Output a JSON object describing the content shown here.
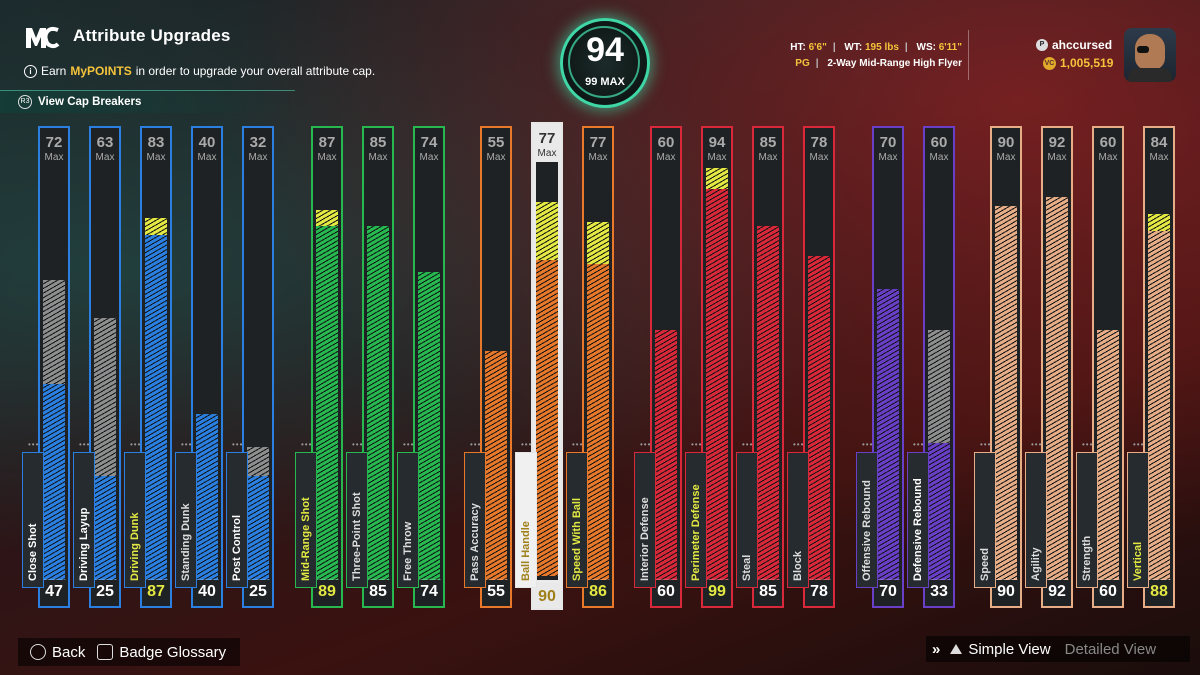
{
  "header": {
    "title": "Attribute Upgrades",
    "earn_prefix": "Earn",
    "earn_highlight": "MyPOINTS",
    "earn_suffix": "in order to upgrade your overall attribute cap.",
    "cap_breakers": "View Cap Breakers"
  },
  "overall": {
    "value": "94",
    "max_label": "99 MAX"
  },
  "player": {
    "ht_label": "HT:",
    "ht": "6'6\"",
    "wt_label": "WT:",
    "wt": "195 lbs",
    "ws_label": "WS:",
    "ws": "6'11\"",
    "position": "PG",
    "archetype": "2-Way Mid-Range High Flyer",
    "username": "ahccursed",
    "vc": "1,005,519"
  },
  "max_label": "Max",
  "colors": {
    "blue": "#2b7fe0",
    "green": "#27b850",
    "orange": "#e8782a",
    "red": "#d8283a",
    "purple": "#6a3fc8",
    "tan": "#e6ad86",
    "gray": "#8e8e8e",
    "yellow": "#e3e842"
  },
  "attributes": [
    {
      "name": "Close Shot",
      "max": 72,
      "current": 47,
      "planned": 47,
      "color": "blue"
    },
    {
      "name": "Driving Layup",
      "max": 63,
      "current": 25,
      "planned": 25,
      "color": "blue"
    },
    {
      "name": "Driving Dunk",
      "max": 83,
      "current": 83,
      "planned": 87,
      "color": "blue"
    },
    {
      "name": "Standing Dunk",
      "max": 40,
      "current": 40,
      "planned": 40,
      "color": "blue"
    },
    {
      "name": "Post Control",
      "max": 32,
      "current": 25,
      "planned": 25,
      "color": "blue"
    },
    {
      "name": "Mid-Range Shot",
      "max": 87,
      "current": 85,
      "planned": 89,
      "color": "green"
    },
    {
      "name": "Three-Point Shot",
      "max": 85,
      "current": 85,
      "planned": 85,
      "color": "green"
    },
    {
      "name": "Free Throw",
      "max": 74,
      "current": 74,
      "planned": 74,
      "color": "green"
    },
    {
      "name": "Pass Accuracy",
      "max": 55,
      "current": 55,
      "planned": 55,
      "color": "orange"
    },
    {
      "name": "Ball Handle",
      "max": 77,
      "current": 76,
      "planned": 90,
      "color": "orange",
      "selected": true
    },
    {
      "name": "Speed With Ball",
      "max": 77,
      "current": 76,
      "planned": 86,
      "color": "orange"
    },
    {
      "name": "Interior Defense",
      "max": 60,
      "current": 60,
      "planned": 60,
      "color": "red"
    },
    {
      "name": "Perimeter Defense",
      "max": 94,
      "current": 94,
      "planned": 99,
      "color": "red"
    },
    {
      "name": "Steal",
      "max": 85,
      "current": 85,
      "planned": 85,
      "color": "red"
    },
    {
      "name": "Block",
      "max": 78,
      "current": 78,
      "planned": 78,
      "color": "red"
    },
    {
      "name": "Offensive Rebound",
      "max": 70,
      "current": 70,
      "planned": 70,
      "color": "purple"
    },
    {
      "name": "Defensive Rebound",
      "max": 60,
      "current": 33,
      "planned": 33,
      "color": "purple"
    },
    {
      "name": "Speed",
      "max": 90,
      "current": 90,
      "planned": 90,
      "color": "tan"
    },
    {
      "name": "Agility",
      "max": 92,
      "current": 92,
      "planned": 92,
      "color": "tan"
    },
    {
      "name": "Strength",
      "max": 60,
      "current": 60,
      "planned": 60,
      "color": "tan"
    },
    {
      "name": "Vertical",
      "max": 84,
      "current": 84,
      "planned": 88,
      "color": "tan"
    }
  ],
  "footer": {
    "back": "Back",
    "glossary": "Badge Glossary",
    "simple_view": "Simple View",
    "detailed_view": "Detailed View"
  }
}
